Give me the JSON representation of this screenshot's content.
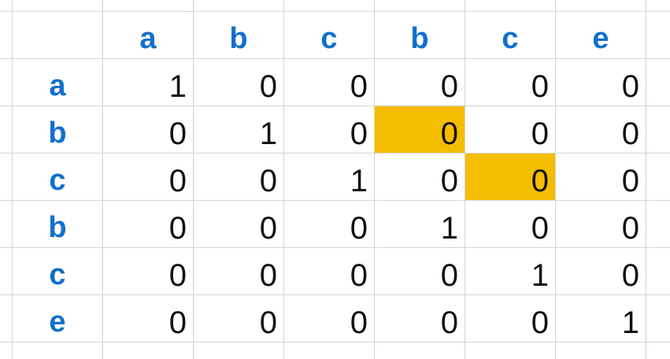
{
  "column_headers": [
    "a",
    "b",
    "c",
    "b",
    "c",
    "e"
  ],
  "row_headers": [
    "a",
    "b",
    "c",
    "b",
    "c",
    "e"
  ],
  "matrix": [
    [
      "1",
      "0",
      "0",
      "0",
      "0",
      "0"
    ],
    [
      "0",
      "1",
      "0",
      "0",
      "0",
      "0"
    ],
    [
      "0",
      "0",
      "1",
      "0",
      "0",
      "0"
    ],
    [
      "0",
      "0",
      "0",
      "1",
      "0",
      "0"
    ],
    [
      "0",
      "0",
      "0",
      "0",
      "1",
      "0"
    ],
    [
      "0",
      "0",
      "0",
      "0",
      "0",
      "1"
    ]
  ],
  "highlighted_cells": [
    [
      1,
      3
    ],
    [
      2,
      4
    ]
  ],
  "colors": {
    "header_text": "#1170cc",
    "highlight": "#f5bd00",
    "gridline": "#d4d4d4"
  }
}
